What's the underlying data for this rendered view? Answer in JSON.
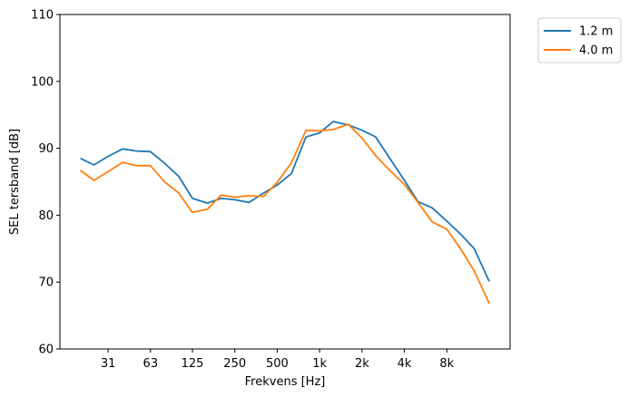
{
  "chart_data": {
    "type": "line",
    "xlabel": "Frekvens [Hz]",
    "ylabel": "SEL tersband [dB]",
    "ylim": [
      60,
      110
    ],
    "yticks": [
      "60",
      "70",
      "80",
      "90",
      "100",
      "110"
    ],
    "xscale": "log",
    "xticks": [
      {
        "label": "31",
        "x": 31.5
      },
      {
        "label": "63",
        "x": 63
      },
      {
        "label": "125",
        "x": 125
      },
      {
        "label": "250",
        "x": 250
      },
      {
        "label": "500",
        "x": 500
      },
      {
        "label": "1k",
        "x": 1000
      },
      {
        "label": "2k",
        "x": 2000
      },
      {
        "label": "4k",
        "x": 4000
      },
      {
        "label": "8k",
        "x": 8000
      }
    ],
    "x": [
      20,
      25,
      31.5,
      40,
      50,
      63,
      80,
      100,
      125,
      160,
      200,
      250,
      315,
      400,
      500,
      630,
      800,
      1000,
      1250,
      1600,
      2000,
      2500,
      3150,
      4000,
      5000,
      6300,
      8000,
      10000,
      12500,
      16000
    ],
    "series": [
      {
        "name": "1.2 m",
        "color": "#1f77b4",
        "values": [
          88.5,
          87.5,
          88.8,
          89.9,
          89.6,
          89.5,
          87.7,
          85.8,
          82.5,
          81.8,
          82.5,
          82.3,
          81.9,
          83.3,
          84.5,
          86.2,
          91.7,
          92.3,
          94.0,
          93.5,
          92.7,
          91.7,
          88.5,
          85.2,
          82.0,
          81.1,
          79.1,
          77.2,
          75.0,
          70.1
        ]
      },
      {
        "name": "4.0 m",
        "color": "#ff7f0e",
        "values": [
          86.7,
          85.2,
          86.5,
          87.9,
          87.4,
          87.4,
          84.9,
          83.3,
          80.4,
          80.9,
          83.0,
          82.7,
          82.9,
          82.8,
          84.9,
          87.8,
          92.7,
          92.6,
          92.8,
          93.6,
          91.5,
          88.9,
          86.7,
          84.6,
          81.9,
          79.0,
          77.9,
          75.0,
          71.7,
          66.8
        ]
      }
    ],
    "legend_position": "outside-top-right",
    "grid": false
  }
}
